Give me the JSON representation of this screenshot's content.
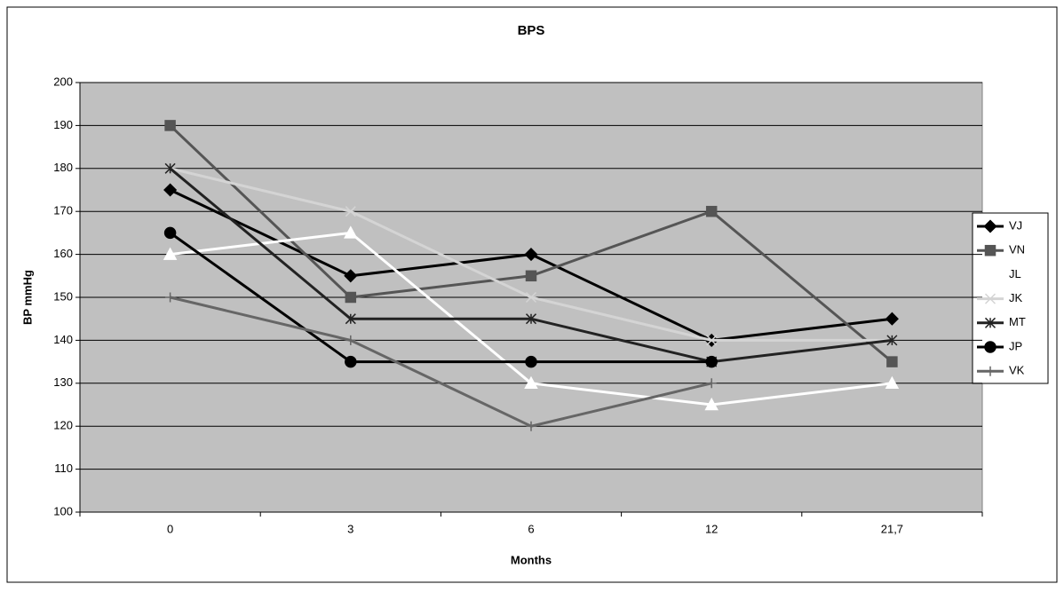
{
  "chart_data": {
    "type": "line",
    "title": "BPS",
    "x_label": "Months",
    "y_label": "BP mmHg",
    "categories": [
      "0",
      "3",
      "6",
      "12",
      "21,7"
    ],
    "ylim": [
      100,
      200
    ],
    "yticks": [
      100,
      110,
      120,
      130,
      140,
      150,
      160,
      170,
      180,
      190,
      200
    ],
    "grid": true,
    "legend": "right",
    "series": [
      {
        "name": "VJ",
        "color": "#000000",
        "marker": "diamond",
        "values": [
          175,
          155,
          160,
          140,
          145
        ]
      },
      {
        "name": "VN",
        "color": "#555555",
        "marker": "square",
        "values": [
          190,
          150,
          155,
          170,
          135
        ]
      },
      {
        "name": "JL",
        "color": "#ffffff",
        "marker": "triangle",
        "values": [
          160,
          165,
          130,
          125,
          130
        ]
      },
      {
        "name": "JK",
        "color": "#d4d4d4",
        "marker": "x",
        "values": [
          180,
          170,
          150,
          140,
          140
        ]
      },
      {
        "name": "MT",
        "color": "#222222",
        "marker": "star",
        "values": [
          180,
          145,
          145,
          135,
          140
        ]
      },
      {
        "name": "JP",
        "color": "#000000",
        "marker": "circle",
        "values": [
          165,
          135,
          135,
          135,
          null
        ]
      },
      {
        "name": "VK",
        "color": "#666666",
        "marker": "plus",
        "values": [
          150,
          140,
          120,
          130,
          null
        ]
      }
    ]
  }
}
